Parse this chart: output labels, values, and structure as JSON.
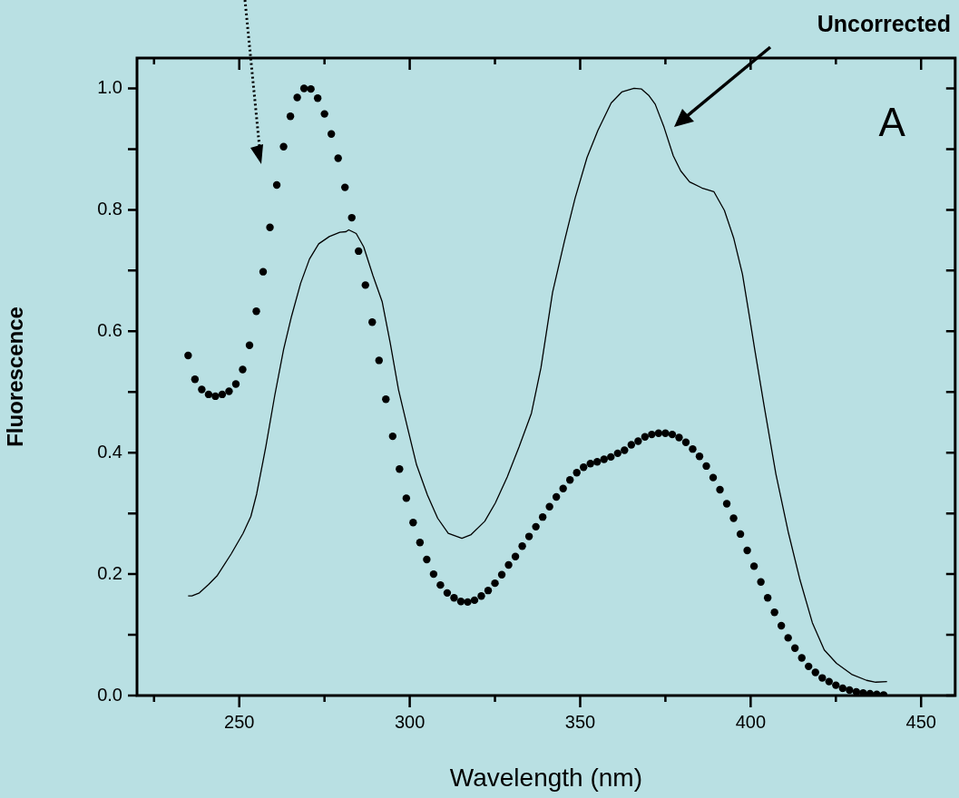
{
  "chart_data": {
    "type": "line",
    "xlabel": "Wavelength (nm)",
    "ylabel": "Fluorescence",
    "xlim": [
      220,
      460
    ],
    "ylim": [
      0,
      1.05
    ],
    "xticks": [
      {
        "value": 225,
        "label": null
      },
      250,
      {
        "value": 275,
        "label": null
      },
      300,
      {
        "value": 325,
        "label": null
      },
      350,
      {
        "value": 375,
        "label": null
      },
      400,
      {
        "value": 425,
        "label": null
      },
      450
    ],
    "yticks": [
      {
        "value": 0,
        "label": "0.0"
      },
      {
        "value": 0.1,
        "label": null
      },
      {
        "value": 0.2,
        "label": "0.2"
      },
      {
        "value": 0.3,
        "label": null
      },
      {
        "value": 0.4,
        "label": "0.4"
      },
      {
        "value": 0.5,
        "label": null
      },
      {
        "value": 0.6,
        "label": "0.6"
      },
      {
        "value": 0.7,
        "label": null
      },
      {
        "value": 0.8,
        "label": "0.8"
      },
      {
        "value": 0.9,
        "label": null
      },
      {
        "value": 1.0,
        "label": "1.0"
      }
    ],
    "grid": false,
    "legend": false,
    "annotations": [
      "A",
      "Uncorrected"
    ],
    "series": [
      {
        "type": "scatter",
        "marker": "circle",
        "color": "#000000",
        "x": [
          235,
          237,
          239,
          241,
          243,
          245,
          247,
          249,
          251,
          253,
          255,
          257,
          259,
          261,
          263,
          265,
          267,
          269,
          271,
          273,
          275,
          277,
          279,
          281,
          283,
          285,
          287,
          289,
          291,
          293,
          295,
          297,
          299,
          301,
          303,
          305,
          307,
          309,
          311,
          313,
          315,
          317,
          319,
          321,
          323,
          325,
          327,
          329,
          331,
          333,
          335,
          337,
          339,
          341,
          343,
          345,
          347,
          349,
          351,
          353,
          355,
          357,
          359,
          361,
          363,
          365,
          367,
          369,
          371,
          373,
          375,
          377,
          379,
          381,
          383,
          385,
          387,
          389,
          391,
          393,
          395,
          397,
          399,
          401,
          403,
          405,
          407,
          409,
          411,
          413,
          415,
          417,
          419,
          421,
          423,
          425,
          427,
          429,
          431,
          433,
          435,
          437,
          439
        ],
        "values": [
          0.56,
          0.521,
          0.504,
          0.496,
          0.493,
          0.496,
          0.501,
          0.513,
          0.537,
          0.577,
          0.633,
          0.698,
          0.771,
          0.841,
          0.904,
          0.954,
          0.985,
          1.0,
          0.999,
          0.984,
          0.958,
          0.925,
          0.885,
          0.837,
          0.787,
          0.732,
          0.676,
          0.615,
          0.552,
          0.488,
          0.427,
          0.373,
          0.325,
          0.285,
          0.252,
          0.224,
          0.2,
          0.182,
          0.169,
          0.161,
          0.155,
          0.154,
          0.157,
          0.164,
          0.173,
          0.185,
          0.199,
          0.215,
          0.229,
          0.246,
          0.262,
          0.278,
          0.294,
          0.311,
          0.327,
          0.341,
          0.355,
          0.367,
          0.376,
          0.382,
          0.385,
          0.389,
          0.393,
          0.399,
          0.404,
          0.413,
          0.419,
          0.426,
          0.43,
          0.432,
          0.432,
          0.43,
          0.425,
          0.417,
          0.406,
          0.394,
          0.378,
          0.359,
          0.339,
          0.316,
          0.292,
          0.266,
          0.239,
          0.213,
          0.187,
          0.161,
          0.137,
          0.115,
          0.095,
          0.078,
          0.062,
          0.048,
          0.038,
          0.029,
          0.023,
          0.017,
          0.012,
          0.009,
          0.006,
          0.004,
          0.003,
          0.002,
          0.001
        ]
      },
      {
        "type": "line",
        "marker": "none",
        "line_style": "solid",
        "color": "#000000",
        "x": [
          235,
          236.1,
          238.3,
          241,
          243.6,
          247.6,
          251.1,
          253.4,
          255.1,
          257.8,
          260.4,
          263,
          265.3,
          268,
          270.6,
          273.3,
          276.4,
          279.5,
          281.3,
          282.1,
          284.3,
          286.5,
          289.2,
          291.9,
          294.3,
          296.7,
          299.4,
          302,
          305.2,
          308.2,
          311.3,
          315.3,
          318,
          322,
          325.1,
          328.6,
          332.1,
          335.7,
          338.5,
          341.9,
          345.4,
          348.5,
          352,
          355.2,
          359.1,
          362.2,
          365.8,
          368,
          370.2,
          372,
          374.6,
          377.3,
          379.5,
          382.1,
          385.7,
          389.2,
          392.3,
          395,
          397.6,
          399.8,
          401.2,
          403.9,
          407.4,
          411,
          414.5,
          418.1,
          421.6,
          425.2,
          429.6,
          434,
          436.7,
          440
        ],
        "values": [
          0.164,
          0.164,
          0.169,
          0.183,
          0.198,
          0.233,
          0.267,
          0.295,
          0.332,
          0.41,
          0.494,
          0.57,
          0.624,
          0.679,
          0.719,
          0.744,
          0.756,
          0.763,
          0.764,
          0.767,
          0.761,
          0.739,
          0.692,
          0.649,
          0.58,
          0.504,
          0.44,
          0.38,
          0.33,
          0.292,
          0.267,
          0.259,
          0.265,
          0.287,
          0.317,
          0.36,
          0.41,
          0.465,
          0.54,
          0.664,
          0.749,
          0.819,
          0.886,
          0.931,
          0.976,
          0.994,
          1.0,
          0.999,
          0.988,
          0.974,
          0.936,
          0.889,
          0.864,
          0.846,
          0.836,
          0.83,
          0.799,
          0.754,
          0.694,
          0.619,
          0.57,
          0.479,
          0.365,
          0.27,
          0.19,
          0.12,
          0.075,
          0.053,
          0.035,
          0.025,
          0.022,
          0.023
        ]
      }
    ]
  }
}
